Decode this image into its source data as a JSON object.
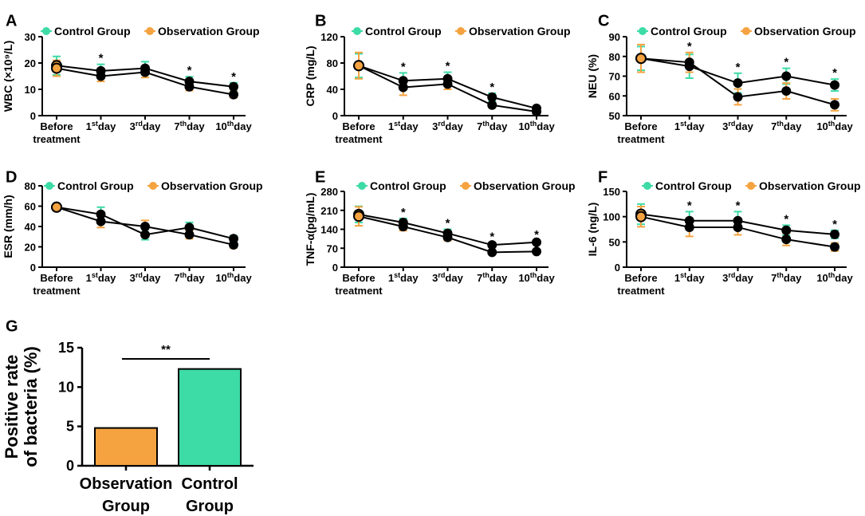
{
  "colors": {
    "control": "#3ddba5",
    "observation": "#f5a340",
    "axis": "#000000"
  },
  "chart_data": [
    {
      "panel": "A",
      "type": "line",
      "ylabel": "WBC (×10⁹/L)",
      "ylim": [
        0,
        30
      ],
      "yticks": [
        0,
        10,
        20,
        30
      ],
      "categories": [
        "Before treatment",
        "1st day",
        "3rd day",
        "7th day",
        "10th day"
      ],
      "legend": [
        "Control Group",
        "Observation Group"
      ],
      "series": [
        {
          "name": "Control Group",
          "values": [
            19,
            17,
            18,
            13,
            11
          ],
          "errors": [
            3.5,
            2.5,
            2.5,
            1.8,
            1.5
          ]
        },
        {
          "name": "Observation Group",
          "values": [
            18,
            15,
            16.5,
            11,
            8
          ],
          "errors": [
            3,
            2,
            2,
            1.5,
            1.2
          ]
        }
      ],
      "significance": [
        "",
        "*",
        "",
        "*",
        "*"
      ]
    },
    {
      "panel": "B",
      "type": "line",
      "ylabel": "CRP (mg/L)",
      "ylim": [
        0,
        120
      ],
      "yticks": [
        0,
        40,
        80,
        120
      ],
      "categories": [
        "Before treatment",
        "1st day",
        "3rd day",
        "7th day",
        "10th day"
      ],
      "legend": [
        "Control Group",
        "Observation Group"
      ],
      "series": [
        {
          "name": "Control Group",
          "values": [
            76,
            53,
            56,
            28,
            11
          ],
          "errors": [
            18,
            12,
            10,
            6,
            3
          ]
        },
        {
          "name": "Observation Group",
          "values": [
            76,
            43,
            48,
            16,
            6
          ],
          "errors": [
            20,
            12,
            8,
            4,
            2
          ]
        }
      ],
      "significance": [
        "",
        "*",
        "*",
        "*",
        ""
      ]
    },
    {
      "panel": "C",
      "type": "line",
      "ylabel": "NEU (%)",
      "ylim": [
        50,
        90
      ],
      "yticks": [
        50,
        60,
        70,
        80,
        90
      ],
      "categories": [
        "Before treatment",
        "1st day",
        "3rd day",
        "7th day",
        "10th day"
      ],
      "legend": [
        "Control Group",
        "Observation Group"
      ],
      "series": [
        {
          "name": "Control Group",
          "values": [
            79,
            75,
            66.5,
            70,
            65.5
          ],
          "errors": [
            6,
            6,
            5,
            4,
            3
          ]
        },
        {
          "name": "Observation Group",
          "values": [
            79,
            77,
            59.5,
            62.5,
            55.5
          ],
          "errors": [
            7,
            5,
            4,
            4,
            3
          ]
        }
      ],
      "significance": [
        "",
        "*",
        "*",
        "*",
        "*"
      ]
    },
    {
      "panel": "D",
      "type": "line",
      "ylabel": "ESR (mm/h)",
      "ylim": [
        0,
        80
      ],
      "yticks": [
        0,
        20,
        40,
        60,
        80
      ],
      "categories": [
        "Before treatment",
        "1st day",
        "3rd day",
        "7th day",
        "10th day"
      ],
      "legend": [
        "Control Group",
        "Observation Group"
      ],
      "series": [
        {
          "name": "Control Group",
          "values": [
            59,
            52,
            32,
            39,
            28
          ],
          "errors": [
            3,
            7,
            5,
            5,
            3
          ]
        },
        {
          "name": "Observation Group",
          "values": [
            59,
            45,
            40,
            32,
            22
          ],
          "errors": [
            3,
            6,
            6,
            4,
            3
          ]
        }
      ],
      "significance": [
        "",
        "",
        "",
        "",
        ""
      ]
    },
    {
      "panel": "E",
      "type": "line",
      "ylabel": "TNF-α(pg/mL)",
      "ylim": [
        0,
        280
      ],
      "yticks": [
        0,
        70,
        140,
        210,
        280
      ],
      "categories": [
        "Before treatment",
        "1st day",
        "3rd day",
        "7th day",
        "10th day"
      ],
      "legend": [
        "Control Group",
        "Observation Group"
      ],
      "series": [
        {
          "name": "Control Group",
          "values": [
            195,
            165,
            125,
            82,
            92
          ],
          "errors": [
            30,
            15,
            15,
            8,
            6
          ]
        },
        {
          "name": "Observation Group",
          "values": [
            188,
            150,
            110,
            55,
            58
          ],
          "errors": [
            35,
            15,
            12,
            8,
            6
          ]
        }
      ],
      "significance": [
        "",
        "*",
        "*",
        "*",
        "*"
      ]
    },
    {
      "panel": "F",
      "type": "line",
      "ylabel": "IL-6 (ng/L)",
      "ylim": [
        0,
        150
      ],
      "yticks": [
        0,
        50,
        100,
        150
      ],
      "categories": [
        "Before treatment",
        "1st day",
        "3rd day",
        "7th day",
        "10th day"
      ],
      "legend": [
        "Control Group",
        "Observation Group"
      ],
      "series": [
        {
          "name": "Control Group",
          "values": [
            105,
            92,
            92,
            73,
            65
          ],
          "errors": [
            20,
            18,
            18,
            10,
            8
          ]
        },
        {
          "name": "Observation Group",
          "values": [
            100,
            79,
            79,
            55,
            40
          ],
          "errors": [
            20,
            18,
            15,
            12,
            8
          ]
        }
      ],
      "significance": [
        "",
        "*",
        "*",
        "*",
        "*"
      ]
    },
    {
      "panel": "G",
      "type": "bar",
      "ylabel": "Positive rate of bacteria (%)",
      "ylabel_lines": [
        "Positive rate",
        "of bacteria (%)"
      ],
      "ylim": [
        0,
        15
      ],
      "yticks": [
        0,
        5,
        10,
        15
      ],
      "categories": [
        "Observation Group",
        "Control Group"
      ],
      "category_lines": [
        [
          "Observation",
          "Group"
        ],
        [
          "Control",
          "Group"
        ]
      ],
      "values": [
        4.8,
        12.3
      ],
      "significance": "**"
    }
  ]
}
